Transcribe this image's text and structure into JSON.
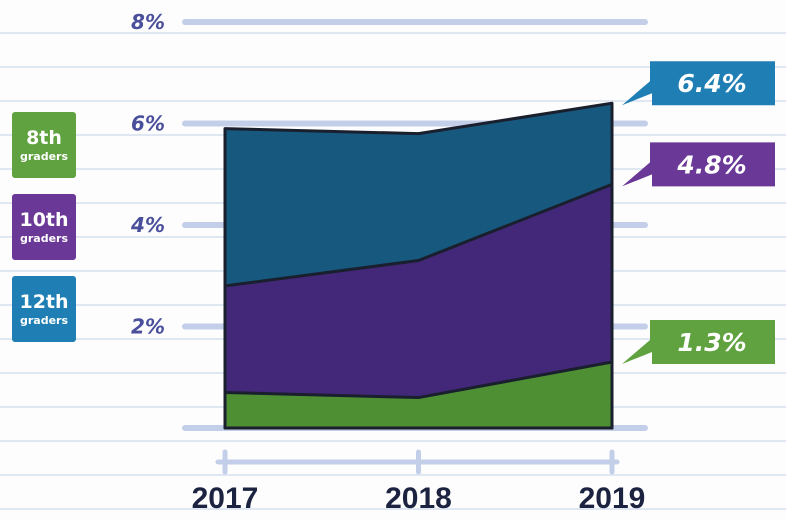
{
  "chart_data": {
    "type": "area",
    "categories": [
      "2017",
      "2018",
      "2019"
    ],
    "series": [
      {
        "name": "8th graders",
        "color": "#4f8f34",
        "label_color": "#5fa23f",
        "values": [
          0.7,
          0.6,
          1.3
        ],
        "value_labels": [
          null,
          null,
          "1.3%"
        ]
      },
      {
        "name": "10th graders",
        "color": "#43287a",
        "label_color": "#6a3896",
        "values": [
          2.8,
          3.3,
          4.8
        ],
        "value_labels": [
          null,
          null,
          "4.8%"
        ]
      },
      {
        "name": "12th graders",
        "color": "#17587e",
        "label_color": "#1f7fb4",
        "values": [
          5.9,
          5.8,
          6.4
        ],
        "value_labels": [
          null,
          null,
          "6.4%"
        ]
      }
    ],
    "ylim": [
      0,
      8
    ],
    "yticks": [
      {
        "value": 2,
        "label": "2%"
      },
      {
        "value": 4,
        "label": "4%"
      },
      {
        "value": 6,
        "label": "6%"
      },
      {
        "value": 8,
        "label": "8%"
      }
    ],
    "grid": true
  }
}
